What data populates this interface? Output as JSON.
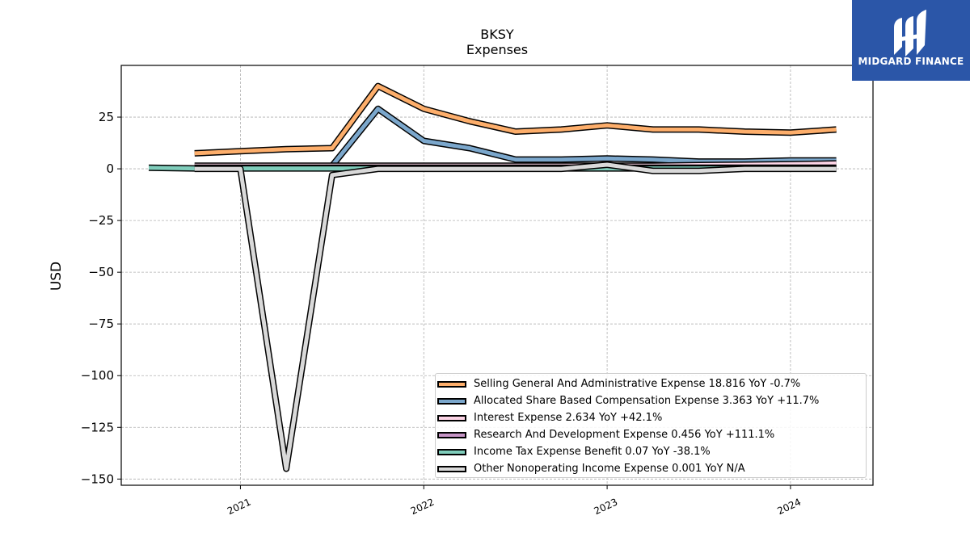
{
  "brand": {
    "name": "MIDGARD FINANCE"
  },
  "chart_data": {
    "type": "line",
    "title": "BKSY",
    "subtitle": "Expenses",
    "xlabel": "",
    "ylabel": "USD",
    "ylim": [
      -153,
      50
    ],
    "xlim": [
      2020.35,
      2024.45
    ],
    "yticks": [
      25,
      0,
      -25,
      -50,
      -75,
      -100,
      -125,
      -150
    ],
    "ytick_labels": [
      "25",
      "0",
      "−25",
      "−50",
      "−75",
      "−100",
      "−125",
      "−150"
    ],
    "xticks": [
      2021,
      2022,
      2023,
      2024
    ],
    "xtick_labels": [
      "2021",
      "2022",
      "2023",
      "2024"
    ],
    "grid": true,
    "legend_position": "lower-right",
    "x": [
      2020.75,
      2021.0,
      2021.25,
      2021.5,
      2021.75,
      2022.0,
      2022.25,
      2022.5,
      2022.75,
      2023.0,
      2023.25,
      2023.5,
      2023.75,
      2024.0,
      2024.25
    ],
    "series": [
      {
        "name": "Selling General And Administrative Expense",
        "legend_label": "Selling General And Administrative Expense  18.816 YoY -0.7%",
        "color": "#fdae6b",
        "x": [
          2020.75,
          2021.0,
          2021.25,
          2021.5,
          2021.75,
          2022.0,
          2022.25,
          2022.5,
          2022.75,
          2023.0,
          2023.25,
          2023.5,
          2023.75,
          2024.0,
          2024.25
        ],
        "values": [
          7.5,
          8.5,
          9.5,
          10,
          40,
          29,
          23,
          18,
          19,
          21,
          19,
          19,
          18,
          17.5,
          19
        ]
      },
      {
        "name": "Allocated Share Based Compensation Expense",
        "legend_label": "Allocated Share Based Compensation Expense  3.363 YoY +11.7%",
        "color": "#7ba7cc",
        "x": [
          2021.5,
          2021.75,
          2022.0,
          2022.25,
          2022.5,
          2022.75,
          2023.0,
          2023.25,
          2023.5,
          2023.75,
          2024.0,
          2024.25
        ],
        "values": [
          1.5,
          29,
          13.5,
          10,
          4.5,
          4.5,
          5,
          4.5,
          3.5,
          3.5,
          4,
          4
        ]
      },
      {
        "name": "Interest Expense",
        "legend_label": "Interest Expense  2.634 YoY +42.1%",
        "color": "#fbd3e5",
        "x": [
          2020.75,
          2021.0,
          2021.25,
          2021.5,
          2021.75,
          2022.0,
          2022.25,
          2022.5,
          2022.75,
          2023.0,
          2023.25,
          2023.5,
          2023.75,
          2024.0,
          2024.25
        ],
        "values": [
          1.5,
          1.5,
          1.5,
          1.5,
          1.5,
          1.5,
          1.5,
          1.5,
          1.5,
          1.5,
          1.5,
          1.8,
          2.0,
          2.2,
          2.6
        ]
      },
      {
        "name": "Research And Development Expense",
        "legend_label": "Research And Development Expense  0.456 YoY +111.1%",
        "color": "#c594c5",
        "x": [
          2020.75,
          2021.0,
          2021.25,
          2021.5,
          2021.75,
          2022.0,
          2022.25,
          2022.5,
          2022.75,
          2023.0,
          2023.25,
          2023.5,
          2023.75,
          2024.0,
          2024.25
        ],
        "values": [
          0.5,
          0.5,
          0.5,
          0.5,
          0.5,
          0.5,
          0.5,
          0.5,
          0.5,
          0.5,
          0.5,
          0.5,
          0.5,
          0.5,
          0.5
        ]
      },
      {
        "name": "Income Tax Expense Benefit",
        "legend_label": "Income Tax Expense Benefit  0.07 YoY -38.1%",
        "color": "#7fcdbb",
        "x": [
          2020.5,
          2020.75,
          2021.0,
          2021.25,
          2021.5,
          2021.75,
          2022.0,
          2022.25,
          2022.5,
          2022.75,
          2023.0,
          2023.25,
          2023.5,
          2023.75,
          2024.0,
          2024.25
        ],
        "values": [
          0.5,
          0.2,
          0.2,
          0.2,
          0.2,
          0.2,
          0.2,
          0.2,
          0.2,
          0.2,
          0.2,
          0.2,
          0.2,
          0.2,
          0.2,
          0.2
        ]
      },
      {
        "name": "Other Nonoperating Income Expense",
        "legend_label": "Other Nonoperating Income Expense  0.001 YoY N/A",
        "color": "#d9d9d9",
        "x": [
          2020.75,
          2021.0,
          2021.25,
          2021.5,
          2021.75,
          2022.0,
          2022.25,
          2022.5,
          2022.75,
          2023.0,
          2023.25,
          2023.5,
          2023.75,
          2024.0,
          2024.25
        ],
        "values": [
          0,
          0,
          -145,
          -3,
          0,
          0,
          0,
          0,
          0,
          2,
          -1,
          -1,
          0,
          0,
          0
        ]
      }
    ]
  }
}
